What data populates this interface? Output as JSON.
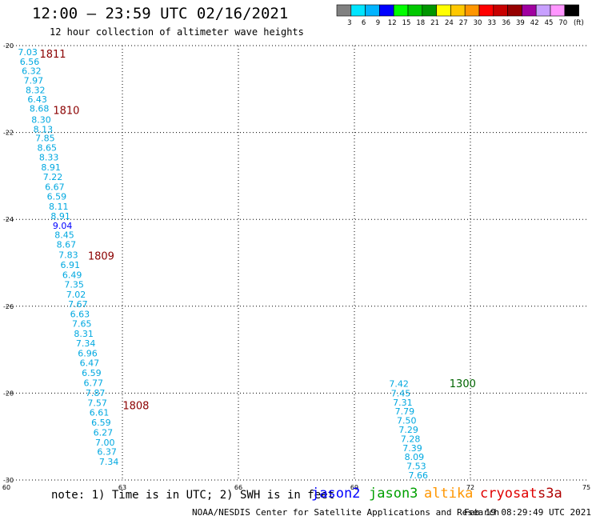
{
  "header": {
    "title": "12:00 – 23:59 UTC 02/16/2021",
    "subtitle": "12 hour collection of altimeter wave heights"
  },
  "legend": {
    "unit": "(ft)",
    "bins": [
      {
        "label": "3",
        "color": "#808080"
      },
      {
        "label": "6",
        "color": "#00e5ff"
      },
      {
        "label": "9",
        "color": "#00b4ff"
      },
      {
        "label": "12",
        "color": "#0000ff"
      },
      {
        "label": "15",
        "color": "#00ff00"
      },
      {
        "label": "18",
        "color": "#00c800"
      },
      {
        "label": "21",
        "color": "#009600"
      },
      {
        "label": "24",
        "color": "#ffff00"
      },
      {
        "label": "27",
        "color": "#ffc800"
      },
      {
        "label": "30",
        "color": "#ff9600"
      },
      {
        "label": "33",
        "color": "#ff0000"
      },
      {
        "label": "36",
        "color": "#c80000"
      },
      {
        "label": "39",
        "color": "#960000"
      },
      {
        "label": "42",
        "color": "#a000a0"
      },
      {
        "label": "45",
        "color": "#c8a0ff"
      },
      {
        "label": "70",
        "color": "#ff96ff"
      },
      {
        "label": "",
        "color": "#000000"
      }
    ]
  },
  "satellites": [
    {
      "name": "jason2",
      "color": "#0000ff"
    },
    {
      "name": "jason3",
      "color": "#00a000"
    },
    {
      "name": "altika",
      "color": "#ff9600"
    },
    {
      "name": "cryosat",
      "color": "#e00000"
    },
    {
      "name": "s3a",
      "color": "#b00000"
    }
  ],
  "footer": {
    "note": "note: 1) Time is in UTC; 2) SWH is in feet",
    "credit": "NOAA/NESDIS Center for Satellite Applications and Research",
    "generated": "Feb 19 08:29:49 UTC 2021"
  },
  "chart_data": {
    "type": "scatter",
    "xlim": [
      60,
      75
    ],
    "ylim": [
      -30,
      -20
    ],
    "x_ticks": [
      60,
      63,
      66,
      69,
      72,
      75
    ],
    "y_ticks": [
      -20,
      -22,
      -24,
      -26,
      -28,
      -30
    ],
    "grid": true,
    "series": [
      {
        "name": "cryosat",
        "points": [
          {
            "lon": 60.55,
            "lat": -20.15,
            "swh": "7.03",
            "color": "#00a8e0"
          },
          {
            "lon": 60.6,
            "lat": -20.37,
            "swh": "6.56",
            "color": "#00a8e0"
          },
          {
            "lon": 60.65,
            "lat": -20.58,
            "swh": "6.32",
            "color": "#00a8e0"
          },
          {
            "lon": 60.7,
            "lat": -20.8,
            "swh": "7.97",
            "color": "#00a8e0"
          },
          {
            "lon": 60.75,
            "lat": -21.02,
            "swh": "8.32",
            "color": "#00a8e0"
          },
          {
            "lon": 60.8,
            "lat": -21.23,
            "swh": "6.43",
            "color": "#00a8e0"
          },
          {
            "lon": 60.85,
            "lat": -21.45,
            "swh": "8.68",
            "color": "#00a8e0"
          },
          {
            "lon": 60.9,
            "lat": -21.7,
            "swh": "8.30",
            "color": "#00a8e0"
          },
          {
            "lon": 60.95,
            "lat": -21.92,
            "swh": "8.13",
            "color": "#00a8e0"
          },
          {
            "lon": 61.0,
            "lat": -22.13,
            "swh": "7.85",
            "color": "#00a8e0"
          },
          {
            "lon": 61.05,
            "lat": -22.35,
            "swh": "8.65",
            "color": "#00a8e0"
          },
          {
            "lon": 61.1,
            "lat": -22.57,
            "swh": "8.33",
            "color": "#00a8e0"
          },
          {
            "lon": 61.15,
            "lat": -22.8,
            "swh": "8.91",
            "color": "#00a8e0"
          },
          {
            "lon": 61.2,
            "lat": -23.02,
            "swh": "7.22",
            "color": "#00a8e0"
          },
          {
            "lon": 61.25,
            "lat": -23.25,
            "swh": "6.67",
            "color": "#00a8e0"
          },
          {
            "lon": 61.3,
            "lat": -23.47,
            "swh": "6.59",
            "color": "#00a8e0"
          },
          {
            "lon": 61.35,
            "lat": -23.7,
            "swh": "8.11",
            "color": "#00a8e0"
          },
          {
            "lon": 61.4,
            "lat": -23.92,
            "swh": "8.91",
            "color": "#00a8e0"
          },
          {
            "lon": 61.45,
            "lat": -24.14,
            "swh": "9.04",
            "color": "#0000ff"
          },
          {
            "lon": 61.5,
            "lat": -24.36,
            "swh": "8.45",
            "color": "#00a8e0"
          },
          {
            "lon": 61.55,
            "lat": -24.58,
            "swh": "8.67",
            "color": "#00a8e0"
          },
          {
            "lon": 61.6,
            "lat": -24.82,
            "swh": "7.83",
            "color": "#00a8e0"
          },
          {
            "lon": 61.65,
            "lat": -25.05,
            "swh": "6.91",
            "color": "#00a8e0"
          },
          {
            "lon": 61.7,
            "lat": -25.28,
            "swh": "6.49",
            "color": "#00a8e0"
          },
          {
            "lon": 61.75,
            "lat": -25.5,
            "swh": "7.35",
            "color": "#00a8e0"
          },
          {
            "lon": 61.8,
            "lat": -25.73,
            "swh": "7.02",
            "color": "#00a8e0"
          },
          {
            "lon": 61.85,
            "lat": -25.95,
            "swh": "7.67",
            "color": "#00a8e0"
          },
          {
            "lon": 61.9,
            "lat": -26.18,
            "swh": "6.63",
            "color": "#00a8e0"
          },
          {
            "lon": 61.95,
            "lat": -26.4,
            "swh": "7.65",
            "color": "#00a8e0"
          },
          {
            "lon": 62.0,
            "lat": -26.63,
            "swh": "8.31",
            "color": "#00a8e0"
          },
          {
            "lon": 62.05,
            "lat": -26.85,
            "swh": "7.34",
            "color": "#00a8e0"
          },
          {
            "lon": 62.1,
            "lat": -27.08,
            "swh": "6.96",
            "color": "#00a8e0"
          },
          {
            "lon": 62.15,
            "lat": -27.3,
            "swh": "6.47",
            "color": "#00a8e0"
          },
          {
            "lon": 62.2,
            "lat": -27.53,
            "swh": "6.59",
            "color": "#00a8e0"
          },
          {
            "lon": 62.25,
            "lat": -27.76,
            "swh": "6.77",
            "color": "#00a8e0"
          },
          {
            "lon": 62.3,
            "lat": -27.99,
            "swh": "7.87",
            "color": "#00a8e0"
          },
          {
            "lon": 62.35,
            "lat": -28.22,
            "swh": "7.57",
            "color": "#00a8e0"
          },
          {
            "lon": 62.4,
            "lat": -28.44,
            "swh": "6.61",
            "color": "#00a8e0"
          },
          {
            "lon": 62.45,
            "lat": -28.67,
            "swh": "6.59",
            "color": "#00a8e0"
          },
          {
            "lon": 62.5,
            "lat": -28.9,
            "swh": "6.27",
            "color": "#00a8e0"
          },
          {
            "lon": 62.55,
            "lat": -29.13,
            "swh": "7.00",
            "color": "#00a8e0"
          },
          {
            "lon": 62.6,
            "lat": -29.35,
            "swh": "6.37",
            "color": "#00a8e0"
          },
          {
            "lon": 62.65,
            "lat": -29.58,
            "swh": "7.34",
            "color": "#00a8e0"
          }
        ]
      },
      {
        "name": "jason3",
        "points": [
          {
            "lon": 70.15,
            "lat": -27.78,
            "swh": "7.42",
            "color": "#00a8e0"
          },
          {
            "lon": 70.2,
            "lat": -28.0,
            "swh": "7.45",
            "color": "#00a8e0"
          },
          {
            "lon": 70.25,
            "lat": -28.21,
            "swh": "7.31",
            "color": "#00a8e0"
          },
          {
            "lon": 70.3,
            "lat": -28.42,
            "swh": "7.79",
            "color": "#00a8e0"
          },
          {
            "lon": 70.35,
            "lat": -28.63,
            "swh": "7.50",
            "color": "#00a8e0"
          },
          {
            "lon": 70.4,
            "lat": -28.84,
            "swh": "7.29",
            "color": "#00a8e0"
          },
          {
            "lon": 70.45,
            "lat": -29.05,
            "swh": "7.28",
            "color": "#00a8e0"
          },
          {
            "lon": 70.5,
            "lat": -29.26,
            "swh": "7.39",
            "color": "#00a8e0"
          },
          {
            "lon": 70.55,
            "lat": -29.47,
            "swh": "8.09",
            "color": "#00a8e0"
          },
          {
            "lon": 70.6,
            "lat": -29.68,
            "swh": "7.53",
            "color": "#00a8e0"
          },
          {
            "lon": 70.65,
            "lat": -29.89,
            "swh": "7.66",
            "color": "#00a8e0"
          }
        ]
      }
    ],
    "time_labels": [
      {
        "text": "1811",
        "lon": 61.2,
        "lat": -20.18,
        "color": "#8b0000"
      },
      {
        "text": "1810",
        "lon": 61.55,
        "lat": -21.48,
        "color": "#8b0000"
      },
      {
        "text": "1809",
        "lon": 62.45,
        "lat": -24.83,
        "color": "#8b0000"
      },
      {
        "text": "1808",
        "lon": 63.35,
        "lat": -28.28,
        "color": "#8b0000"
      },
      {
        "text": "1300",
        "lon": 71.8,
        "lat": -27.77,
        "color": "#006400"
      }
    ]
  }
}
